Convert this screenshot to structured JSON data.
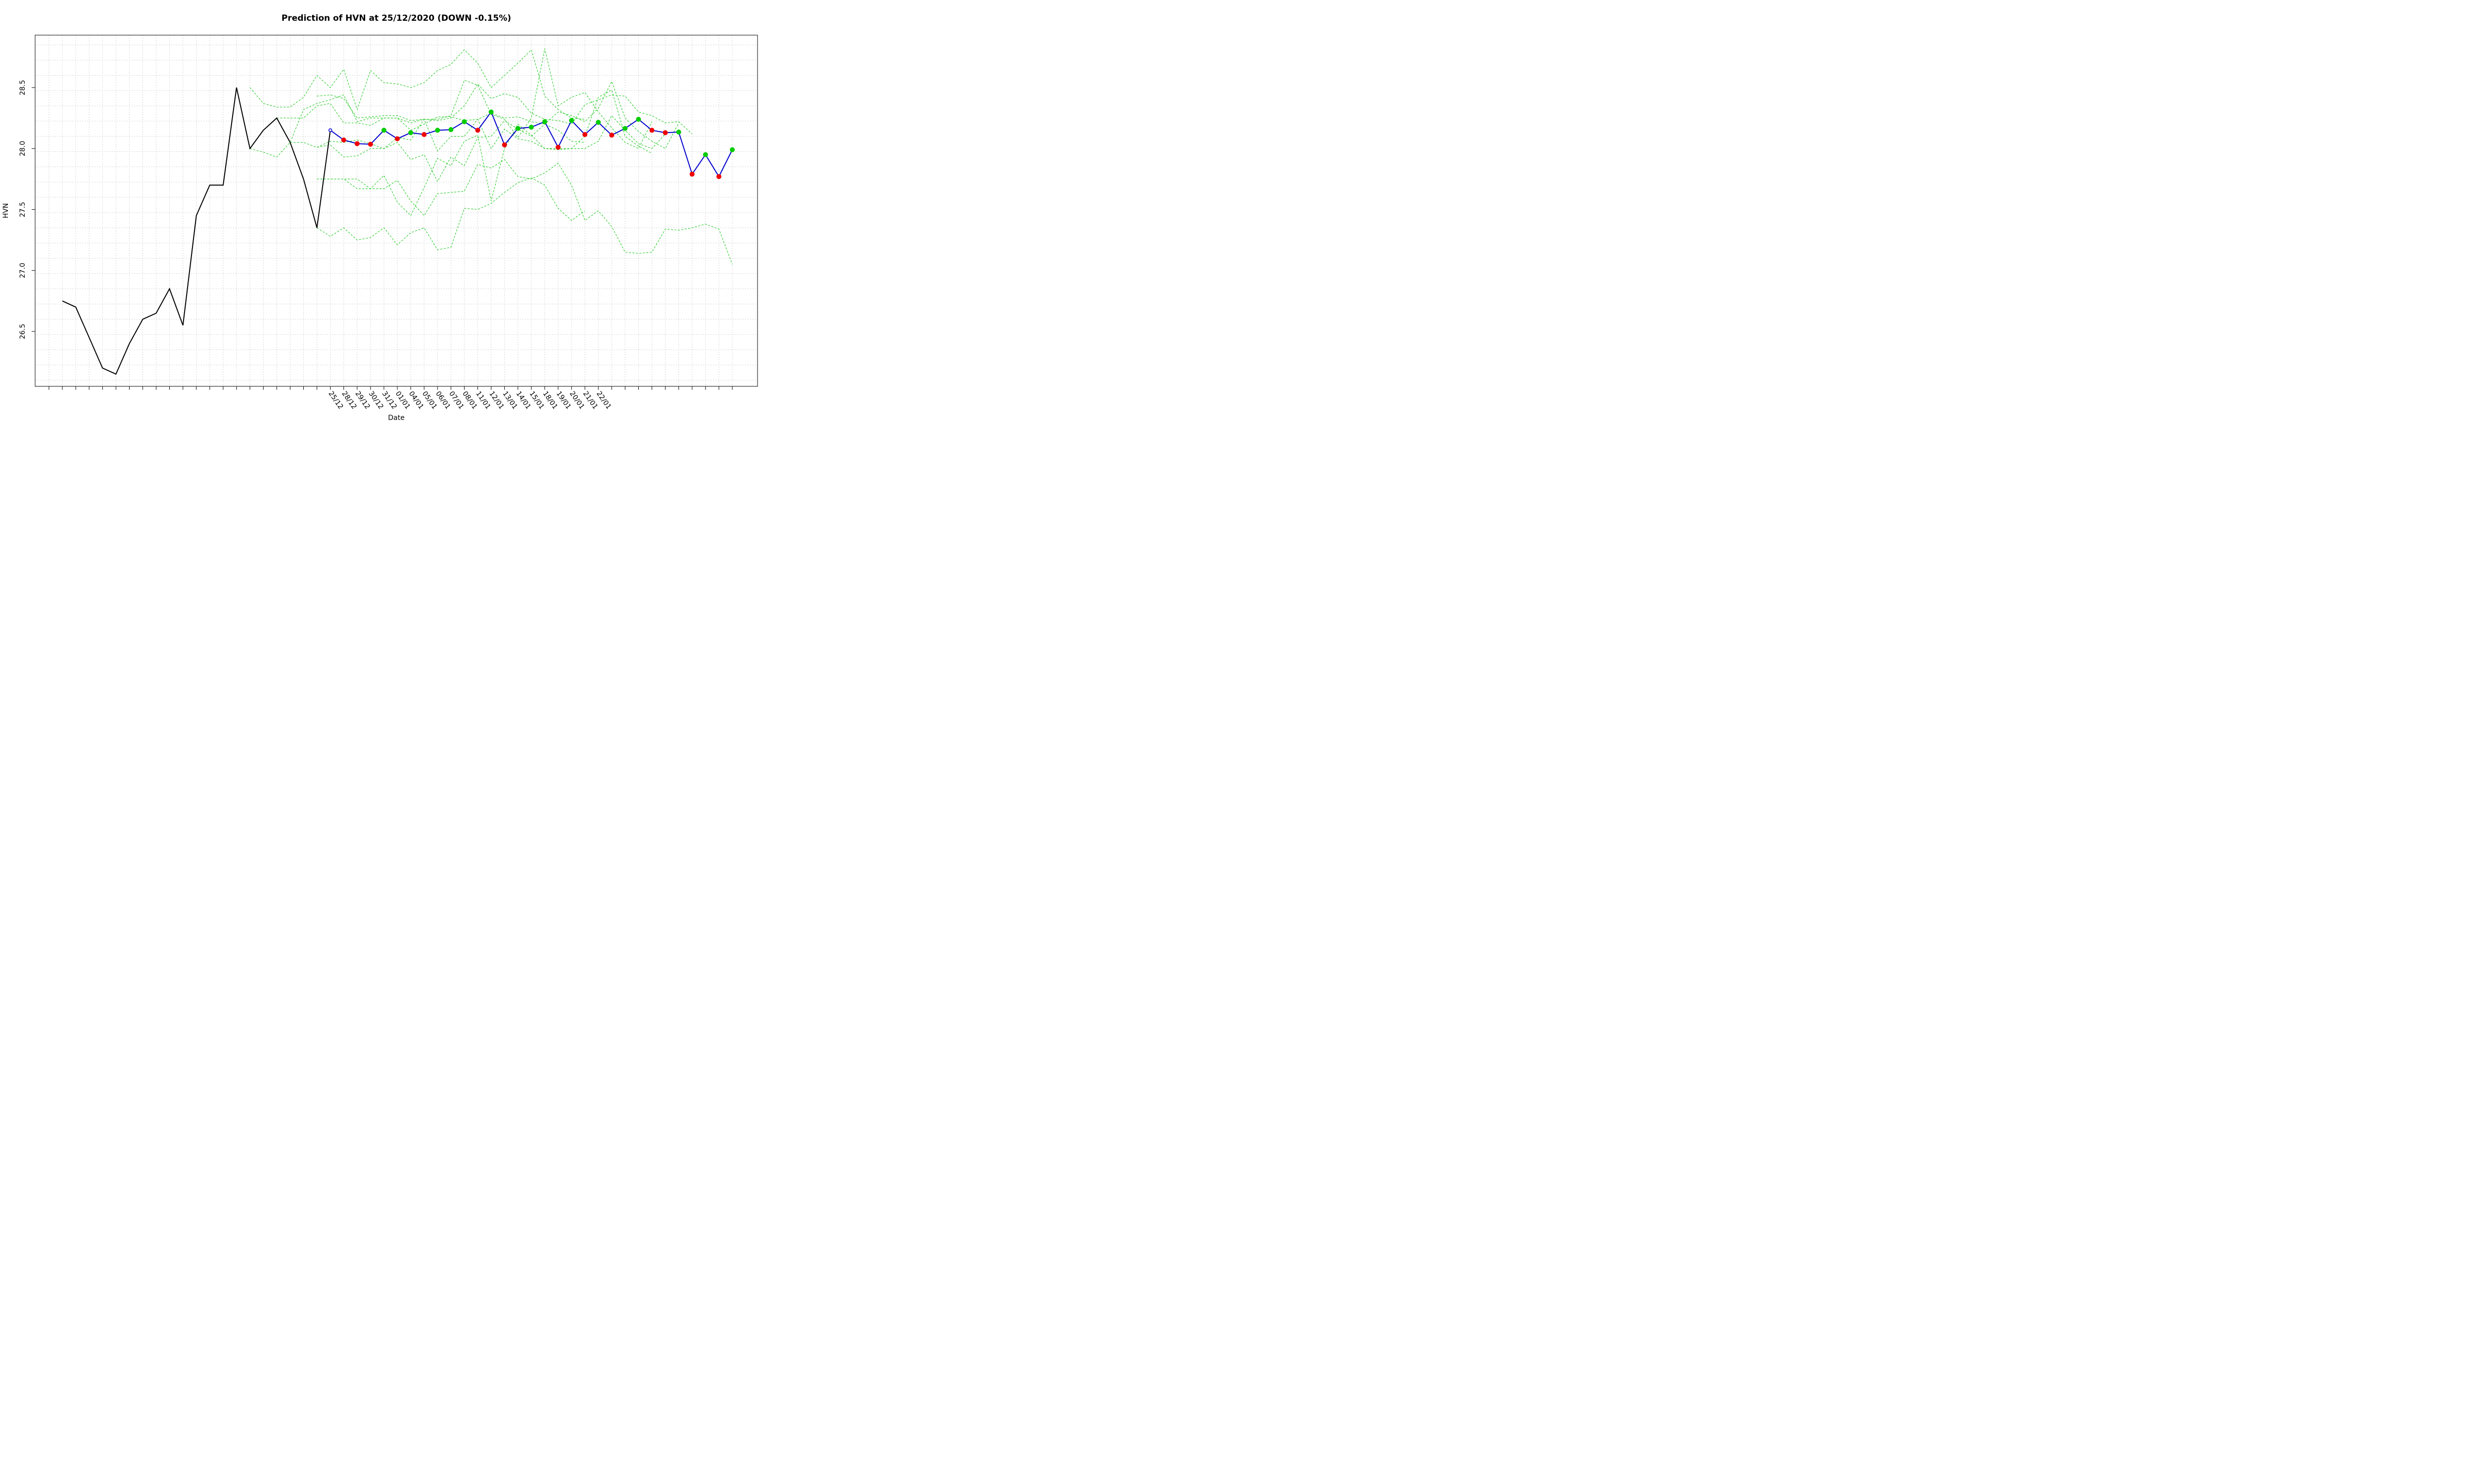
{
  "chart_data": {
    "type": "line",
    "title": "Prediction of HVN at 25/12/2020 (DOWN -0.15%)",
    "xlabel": "Date",
    "ylabel": "HVN",
    "ylim": [
      26.05,
      28.93
    ],
    "yticks": [
      26.5,
      27.0,
      27.5,
      28.0,
      28.5
    ],
    "grid": true,
    "x_tick_labels": [
      "25/12",
      "28/12",
      "29/12",
      "30/12",
      "31/12",
      "01/01",
      "04/01",
      "05/01",
      "06/01",
      "07/01",
      "08/01",
      "11/01",
      "12/01",
      "13/01",
      "14/01",
      "15/01",
      "18/01",
      "19/01",
      "20/01",
      "21/01",
      "22/01"
    ],
    "n_steps": 52,
    "tick_label_start_index": 20,
    "history": {
      "start_index": 0,
      "values": [
        26.75,
        26.7,
        26.45,
        26.2,
        26.15,
        26.4,
        26.6,
        26.65,
        26.85,
        26.55,
        27.45,
        27.7,
        27.7,
        28.5,
        28.0,
        28.15,
        28.25,
        28.05,
        27.75,
        27.35,
        28.15
      ],
      "color": "#000000"
    },
    "prediction": {
      "start_index": 20,
      "values": [
        28.15,
        28.07,
        28.04,
        28.035,
        28.15,
        28.08,
        28.13,
        28.115,
        28.15,
        28.155,
        28.22,
        28.15,
        28.3,
        28.03,
        28.165,
        28.175,
        28.22,
        28.01,
        28.23,
        28.115,
        28.215,
        28.11,
        28.165,
        28.24,
        28.15,
        28.13,
        28.135,
        27.79,
        27.95,
        27.77,
        27.99
      ],
      "color": "#0000cc",
      "up_color": "#00cc00",
      "down_color": "#ee0000"
    },
    "scenarios": {
      "color": "#22cc22",
      "series": [
        {
          "start_index": 14,
          "values": [
            28.5,
            28.37,
            28.34,
            28.34,
            28.42,
            28.6,
            28.5,
            28.65,
            28.32,
            28.64,
            28.54,
            28.53,
            28.5,
            28.54,
            28.64,
            28.69,
            28.81,
            28.7,
            28.5,
            28.6,
            28.7,
            28.81,
            28.43,
            28.32,
            28.25,
            28.24
          ]
        },
        {
          "start_index": 14,
          "values": [
            28.0,
            27.97,
            27.93,
            28.05,
            28.32,
            28.37,
            28.4,
            28.44,
            28.22,
            28.25,
            28.25,
            28.25,
            28.21,
            28.24,
            28.24,
            28.27,
            28.56,
            28.52,
            28.28,
            28.24,
            28.09,
            28.25,
            28.82,
            28.35,
            28.42,
            28.46,
            28.3,
            28.17,
            28.05,
            28.0,
            28.22
          ]
        },
        {
          "start_index": 19,
          "values": [
            28.43,
            28.44,
            28.41,
            28.25,
            28.26,
            28.27,
            28.27,
            28.23,
            28.24,
            28.23,
            28.25,
            28.35,
            28.53,
            28.41,
            28.45,
            28.42,
            28.29,
            28.24,
            28.23,
            28.2,
            28.36,
            28.4,
            28.44,
            28.43,
            28.3,
            28.27,
            28.21,
            28.22,
            28.12
          ]
        },
        {
          "start_index": 16,
          "values": [
            28.25,
            28.25,
            28.25,
            28.35,
            28.37,
            28.21,
            28.21,
            28.19,
            28.25,
            28.25,
            28.15,
            28.2,
            28.26,
            28.26,
            28.23,
            28.24,
            28.29,
            28.25,
            28.26,
            28.22,
            28.2,
            28.15,
            28.06,
            28.05
          ]
        },
        {
          "start_index": 19,
          "values": [
            28.01,
            28.03,
            27.93,
            27.94,
            28.0,
            28.0,
            28.09,
            28.07,
            28.24,
            27.98,
            28.1,
            28.1,
            28.24,
            28.0,
            28.16,
            28.08,
            28.06,
            28.0,
            27.99,
            28.0,
            28.0,
            28.06,
            28.27,
            28.15,
            28.04,
            28.0,
            28.12
          ]
        },
        {
          "start_index": 17,
          "values": [
            28.05,
            28.05,
            28.01,
            28.06,
            28.05,
            28.07,
            28.04,
            28.0,
            28.05,
            27.91,
            27.95,
            27.73,
            27.93,
            27.86,
            28.09,
            28.1,
            28.23,
            28.16,
            28.1,
            28.2,
            28.3,
            28.27,
            28.22,
            28.33,
            28.55,
            28.25,
            28.14,
            28.06,
            28.0,
            28.21
          ]
        },
        {
          "start_index": 19,
          "values": [
            27.75,
            27.75,
            27.75,
            27.67,
            27.67,
            27.78,
            27.56,
            27.45,
            27.68,
            27.92,
            27.86,
            28.06,
            28.11,
            27.57,
            28.0,
            28.2,
            28.11,
            28.0,
            28.0,
            28.0,
            28.1,
            28.42,
            28.48,
            28.1,
            28.02,
            27.96
          ]
        },
        {
          "start_index": 19,
          "values": [
            27.75,
            27.75,
            27.75,
            27.75,
            27.67,
            27.67,
            27.74,
            27.57,
            27.45,
            27.63,
            27.64,
            27.65,
            27.87,
            27.84,
            27.91,
            27.77,
            27.75,
            27.8,
            27.88,
            27.7,
            27.41,
            27.49,
            27.36,
            27.15,
            27.14,
            27.15,
            27.34,
            27.33,
            27.35,
            27.38,
            27.34,
            27.05
          ]
        },
        {
          "start_index": 19,
          "values": [
            27.35,
            27.28,
            27.35,
            27.25,
            27.27,
            27.35,
            27.21,
            27.31,
            27.35,
            27.17,
            27.19,
            27.51,
            27.5,
            27.55,
            27.64,
            27.72,
            27.76,
            27.7,
            27.51,
            27.41,
            27.49
          ]
        }
      ]
    }
  }
}
